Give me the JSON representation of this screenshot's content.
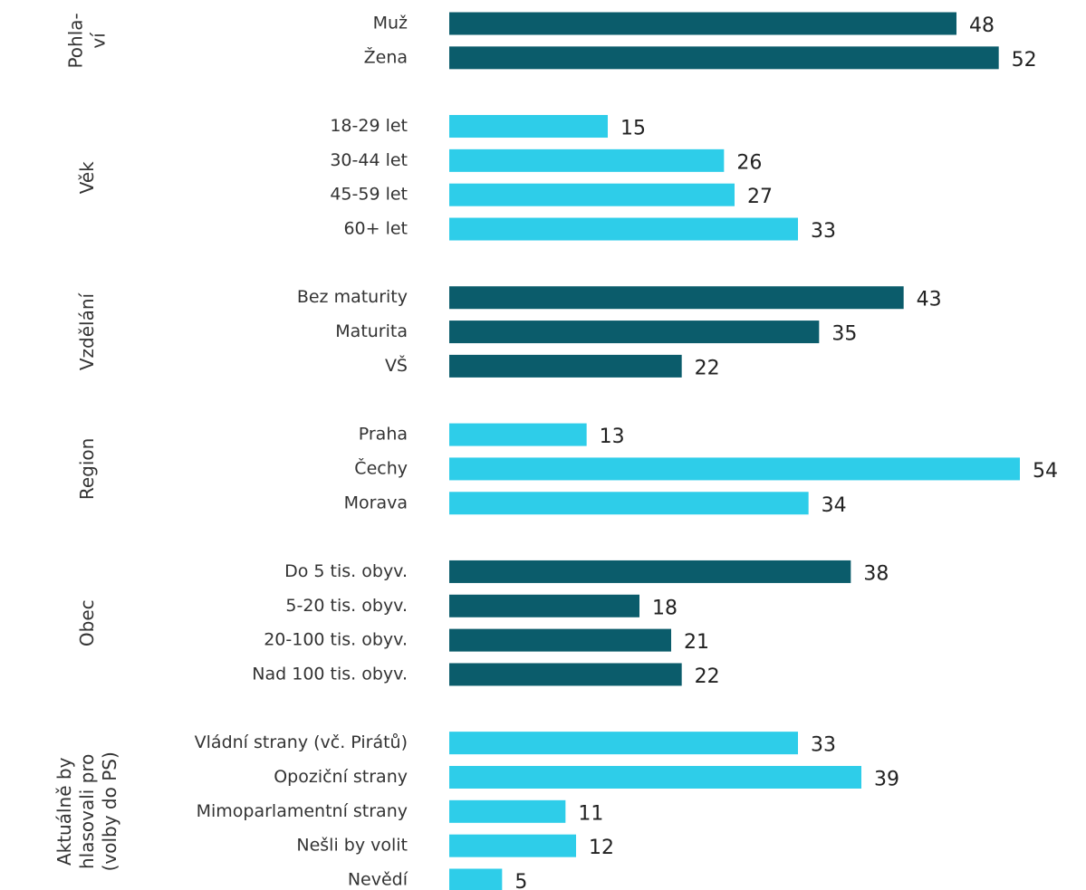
{
  "chart_data": {
    "type": "bar",
    "groups": [
      {
        "name": [
          "Pohla-",
          "ví"
        ],
        "color": "#0b5c6b",
        "categories": [
          "Muž",
          "Žena"
        ],
        "values": [
          48,
          52
        ]
      },
      {
        "name": [
          "Věk"
        ],
        "color": "#2ecde9",
        "categories": [
          "18-29 let",
          "30-44 let",
          "45-59 let",
          "60+ let"
        ],
        "values": [
          15,
          26,
          27,
          33
        ]
      },
      {
        "name": [
          "Vzdělání"
        ],
        "color": "#0b5c6b",
        "categories": [
          "Bez maturity",
          "Maturita",
          "VŠ"
        ],
        "values": [
          43,
          35,
          22
        ]
      },
      {
        "name": [
          "Region"
        ],
        "color": "#2ecde9",
        "categories": [
          "Praha",
          "Čechy",
          "Morava"
        ],
        "values": [
          13,
          54,
          34
        ]
      },
      {
        "name": [
          "Obec"
        ],
        "color": "#0b5c6b",
        "categories": [
          "Do 5 tis. obyv.",
          "5-20 tis. obyv.",
          "20-100 tis. obyv.",
          "Nad 100 tis. obyv."
        ],
        "values": [
          38,
          18,
          21,
          22
        ]
      },
      {
        "name": [
          "Aktuálně by",
          "hlasovali pro",
          "(volby do PS)"
        ],
        "color": "#2ecde9",
        "categories": [
          "Vládní strany (vč. Pirátů)",
          "Opoziční strany",
          "Mimoparlamentní strany",
          "Nešli by volit",
          "Nevědí"
        ],
        "values": [
          33,
          39,
          11,
          12,
          5
        ]
      }
    ]
  }
}
